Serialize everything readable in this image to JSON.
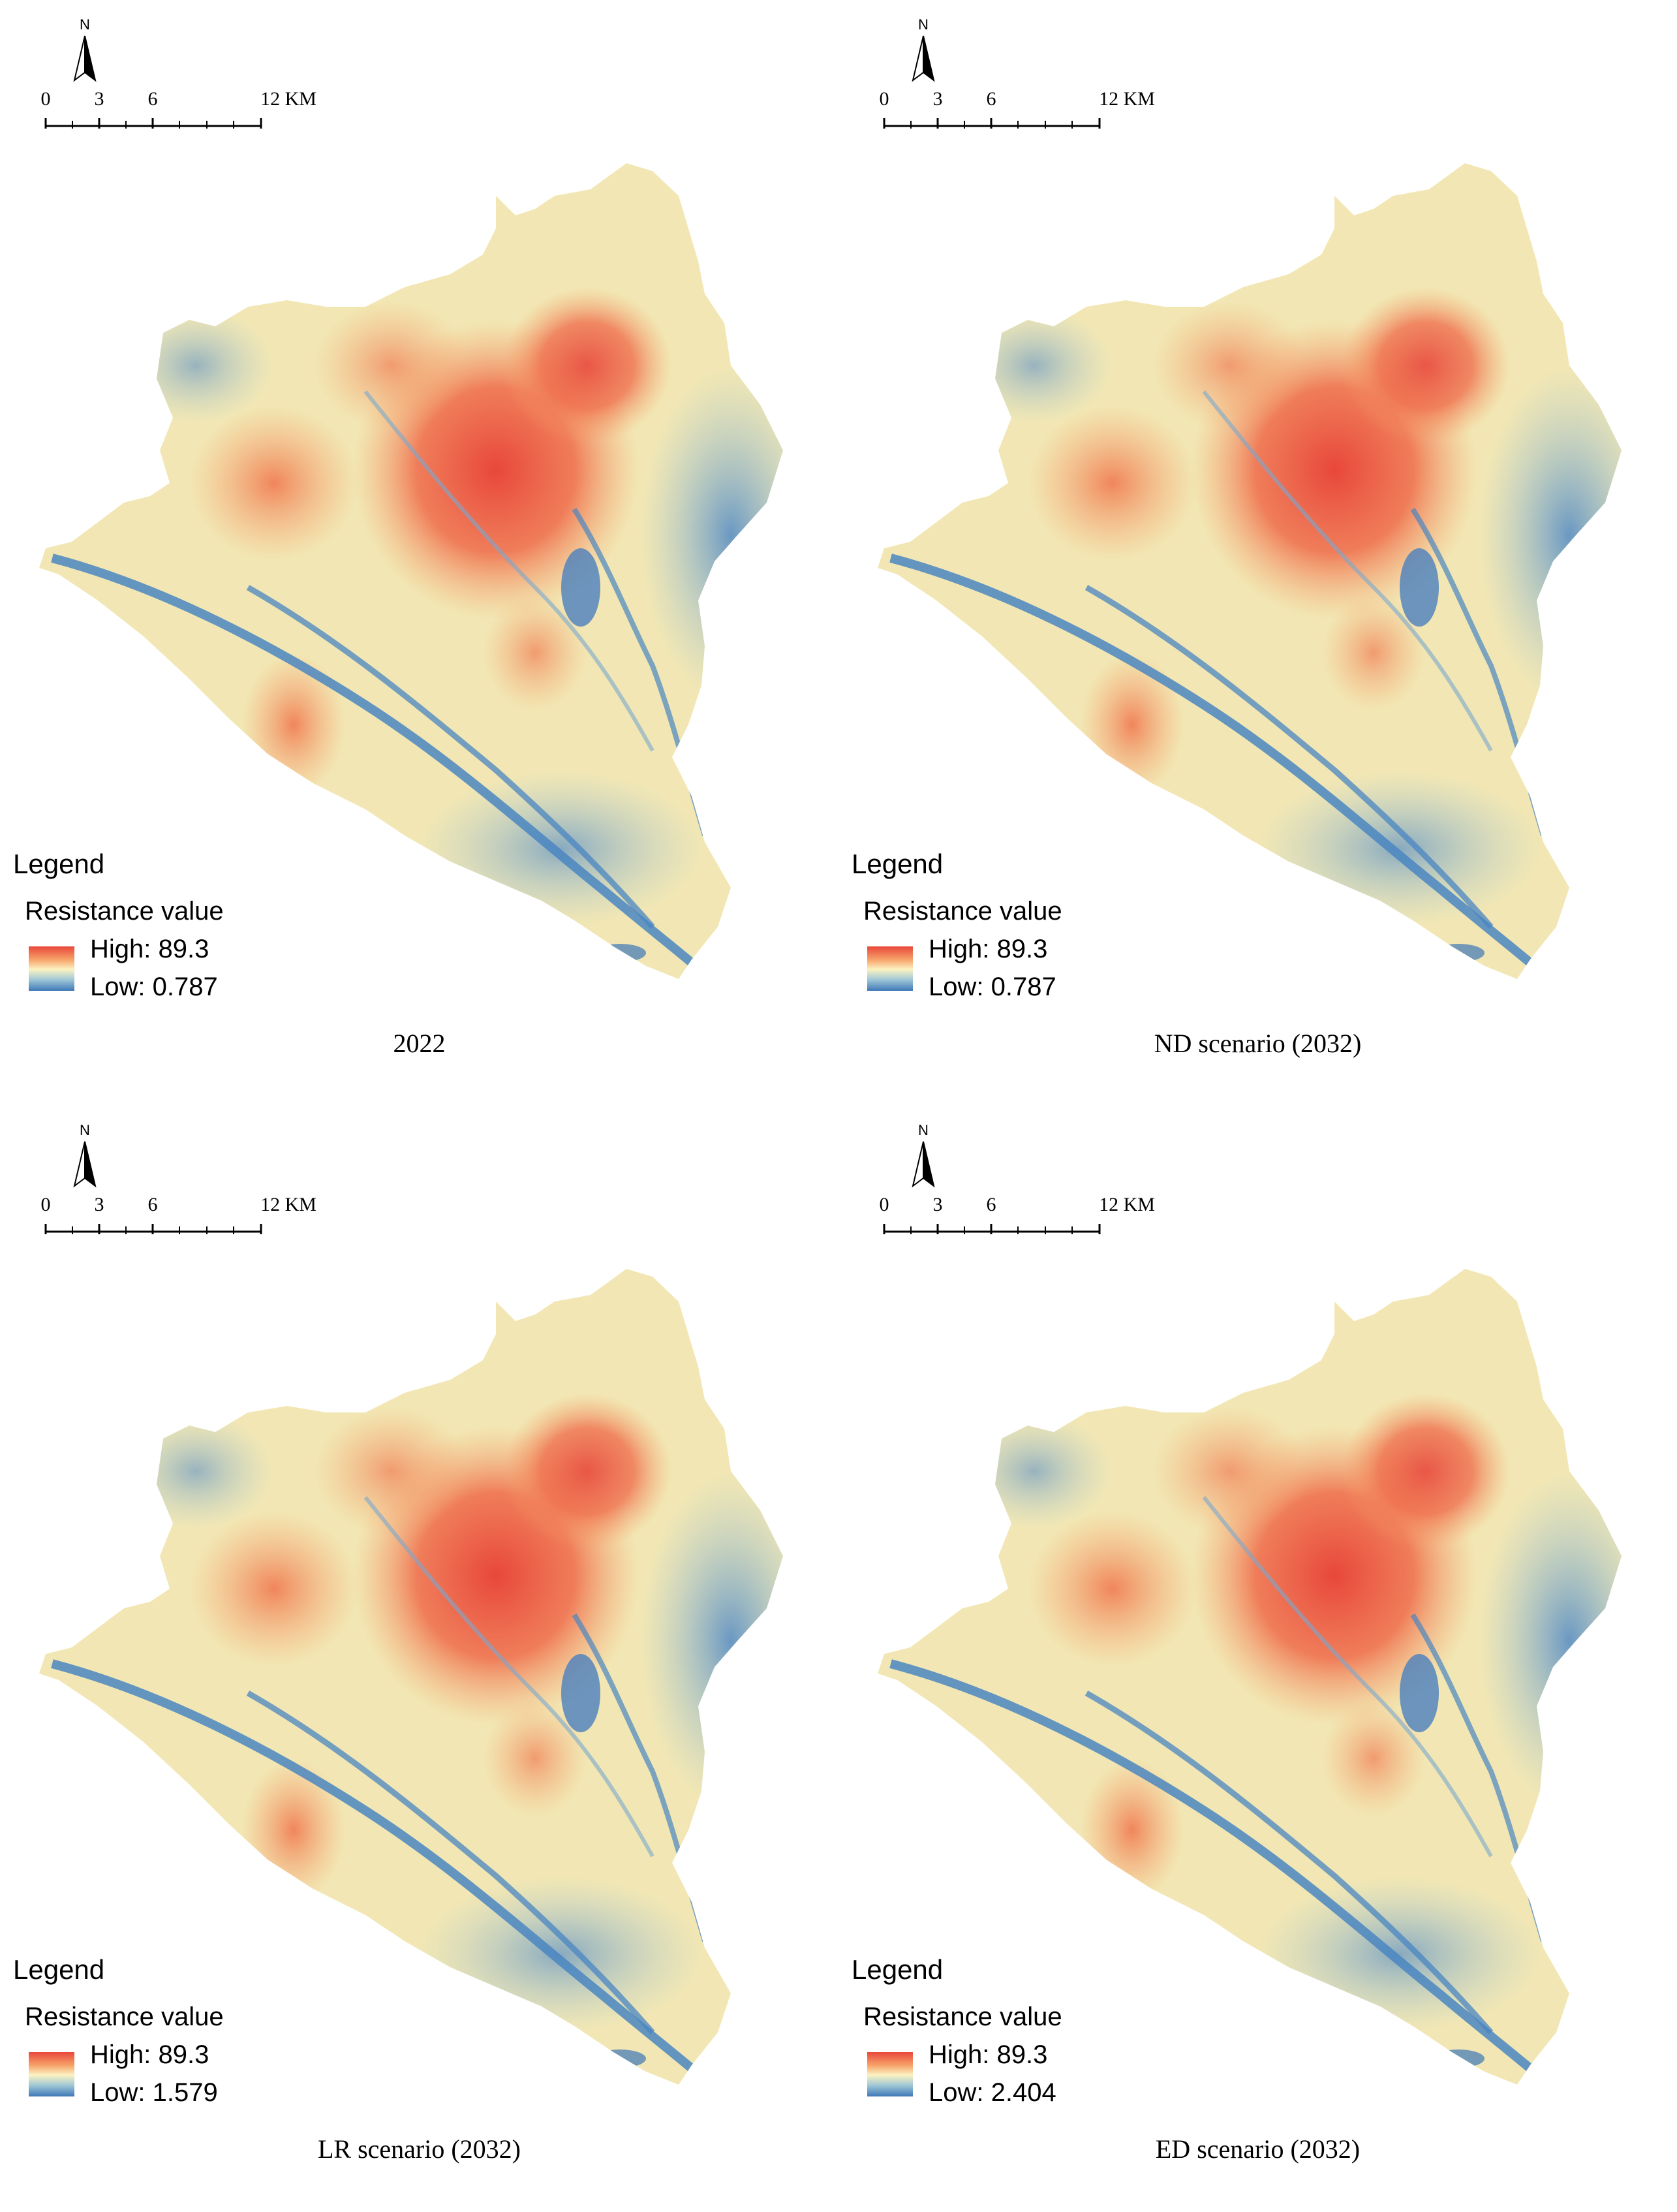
{
  "colors": {
    "high": "#e8473a",
    "mid_high": "#f7a36a",
    "mid": "#fbf3c2",
    "mid_low": "#9fc7d6",
    "low": "#3f78b8",
    "river": "#4a86c1"
  },
  "panels": [
    {
      "caption": "2022",
      "north_label": "N",
      "scale_labels": [
        "0",
        "3",
        "6",
        "12 KM"
      ],
      "legend": {
        "title": "Legend",
        "subtitle": "Resistance value",
        "high": "High: 89.3",
        "low": "Low:  0.787"
      }
    },
    {
      "caption": "ND scenario (2032)",
      "north_label": "N",
      "scale_labels": [
        "0",
        "3",
        "6",
        "12 KM"
      ],
      "legend": {
        "title": "Legend",
        "subtitle": "Resistance value",
        "high": "High: 89.3",
        "low": "Low:  0.787"
      }
    },
    {
      "caption": "LR scenario (2032)",
      "north_label": "N",
      "scale_labels": [
        "0",
        "3",
        "6",
        "12 KM"
      ],
      "legend": {
        "title": "Legend",
        "subtitle": "Resistance value",
        "high": "High: 89.3",
        "low": "Low:  1.579"
      }
    },
    {
      "caption": "ED scenario (2032)",
      "north_label": "N",
      "scale_labels": [
        "0",
        "3",
        "6",
        "12 KM"
      ],
      "legend": {
        "title": "Legend",
        "subtitle": "Resistance value",
        "high": "High: 89.3",
        "low": "Low:  2.404"
      }
    }
  ]
}
